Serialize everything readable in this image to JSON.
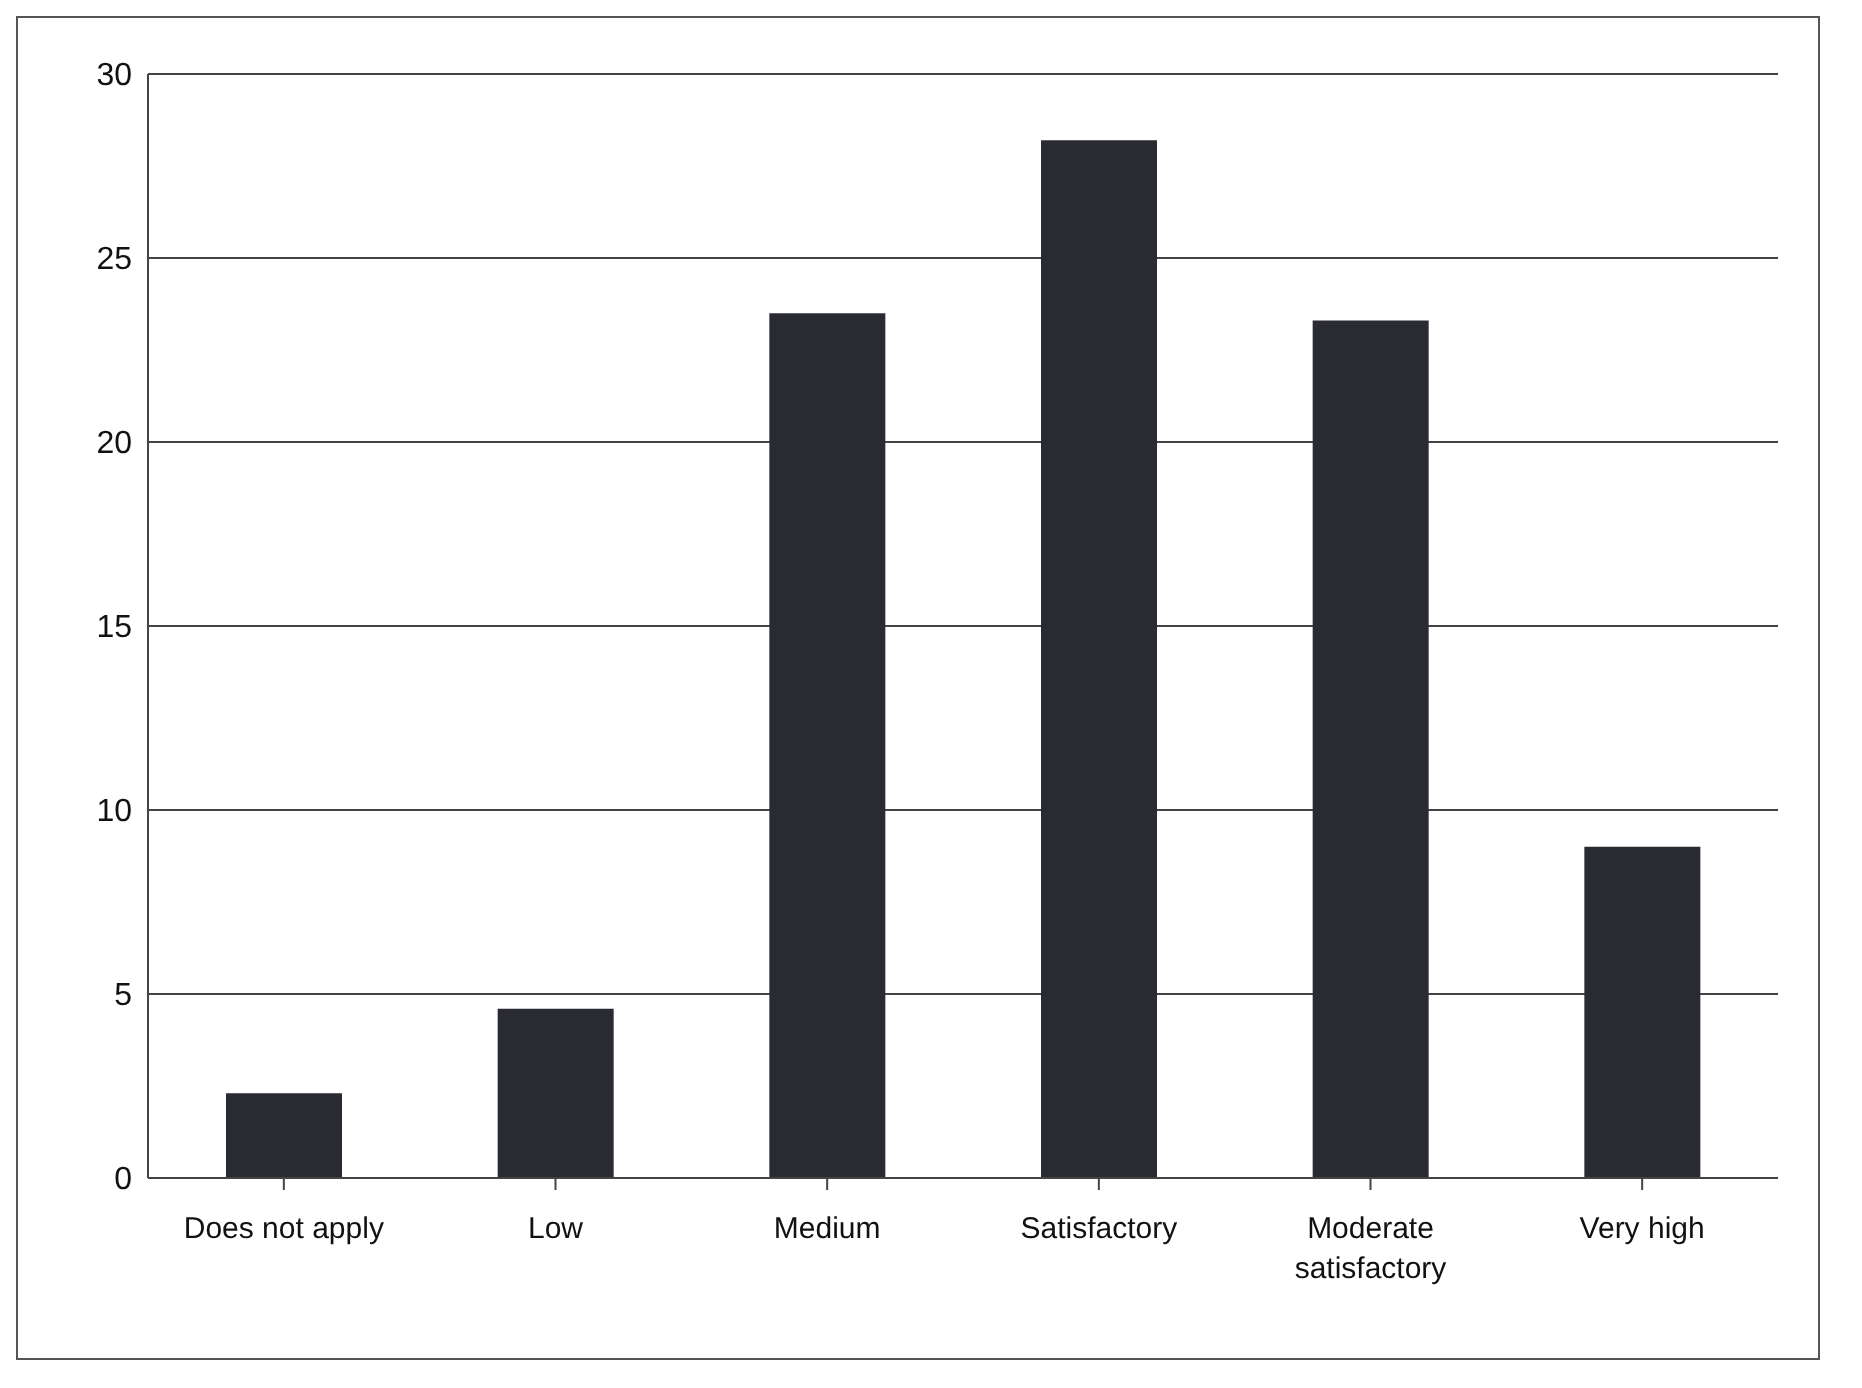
{
  "chart_data": {
    "type": "bar",
    "categories": [
      "Does not apply",
      "Low",
      "Medium",
      "Satisfactory",
      "Moderate satisfactory",
      "Very high"
    ],
    "values": [
      2.3,
      4.6,
      23.5,
      28.2,
      23.3,
      9
    ],
    "color": "#2a2a33",
    "ylim": [
      0,
      30
    ],
    "yticks": [
      0,
      5,
      10,
      15,
      20,
      25,
      30
    ],
    "grid": "y"
  }
}
